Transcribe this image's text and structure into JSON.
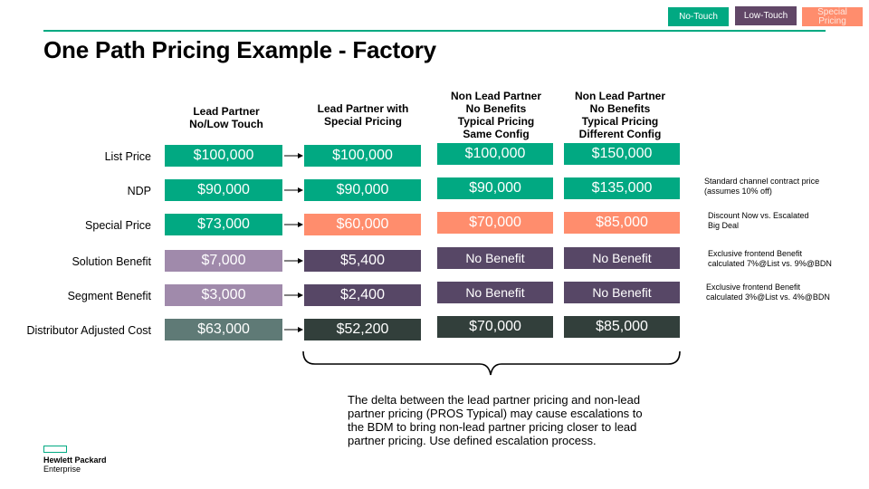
{
  "legend": {
    "no_touch": "No-Touch",
    "low_touch": "Low-Touch",
    "special_pricing": "Special Pricing"
  },
  "title": "One Path Pricing Example - Factory",
  "columns": [
    "Lead Partner\nNo/Low Touch",
    "Lead Partner with\nSpecial Pricing",
    "Non Lead Partner\nNo Benefits\nTypical Pricing\nSame Config",
    "Non Lead Partner\nNo Benefits\nTypical Pricing\nDifferent Config"
  ],
  "rows": [
    {
      "label": "List Price",
      "values": [
        "$100,000",
        "$100,000",
        "$100,000",
        "$150,000"
      ]
    },
    {
      "label": "NDP",
      "values": [
        "$90,000",
        "$90,000",
        "$90,000",
        "$135,000"
      ]
    },
    {
      "label": "Special Price",
      "values": [
        "$73,000",
        "$60,000",
        "$70,000",
        "$85,000"
      ]
    },
    {
      "label": "Solution Benefit",
      "values": [
        "$7,000",
        "$5,400",
        "No Benefit",
        "No Benefit"
      ]
    },
    {
      "label": "Segment Benefit",
      "values": [
        "$3,000",
        "$2,400",
        "No Benefit",
        "No Benefit"
      ]
    },
    {
      "label": "Distributor Adjusted Cost",
      "values": [
        "$63,000",
        "$52,200",
        "$70,000",
        "$85,000"
      ]
    }
  ],
  "notes": [
    "Standard channel contract price\n(assumes 10% off)",
    "Discount Now vs. Escalated\nBig Deal",
    "Exclusive frontend Benefit\ncalculated 7%@List vs. 9%@BDN",
    "Exclusive frontend Benefit\ncalculated 3%@List vs. 4%@BDN"
  ],
  "explanation": "The delta between the lead partner pricing and non-lead partner pricing (PROS Typical) may cause escalations to the BDM to bring non-lead partner pricing closer to lead partner pricing.  Use defined escalation process.",
  "logo": {
    "line1": "Hewlett Packard",
    "line2": "Enterprise"
  },
  "colors": {
    "hpe_green": "#01a982",
    "purple_dark": "#614767",
    "salmon": "#ff8d6d",
    "lavender": "#a08aab",
    "slate_teal": "#5f7a76",
    "dark_charcoal": "#323f3b",
    "dark_purple": "#574766"
  }
}
